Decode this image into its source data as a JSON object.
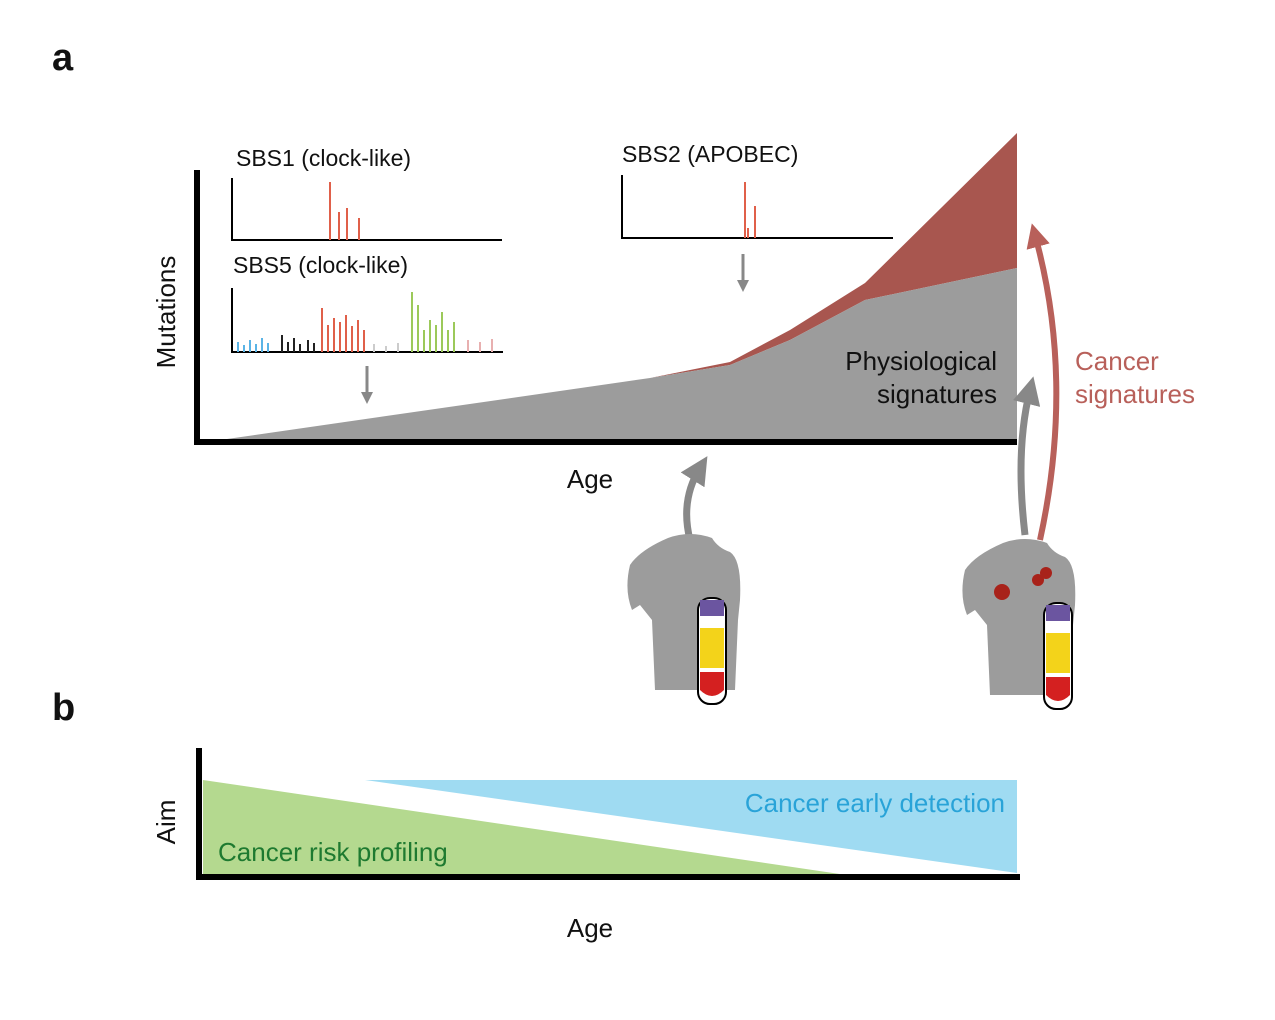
{
  "panel_a": {
    "label": "a",
    "y_axis_label": "Mutations",
    "x_axis_label": "Age",
    "insets": [
      {
        "title": "SBS1 (clock-like)"
      },
      {
        "title": "SBS5 (clock-like)"
      },
      {
        "title": "SBS2 (APOBEC)"
      }
    ],
    "physiological_label": [
      "Physiological",
      "signatures"
    ],
    "cancer_label": [
      "Cancer",
      "signatures"
    ]
  },
  "panel_b": {
    "label": "b",
    "y_axis_label": "Aim",
    "x_axis_label": "Age",
    "risk_label": "Cancer risk profiling",
    "detection_label": "Cancer early detection"
  }
}
